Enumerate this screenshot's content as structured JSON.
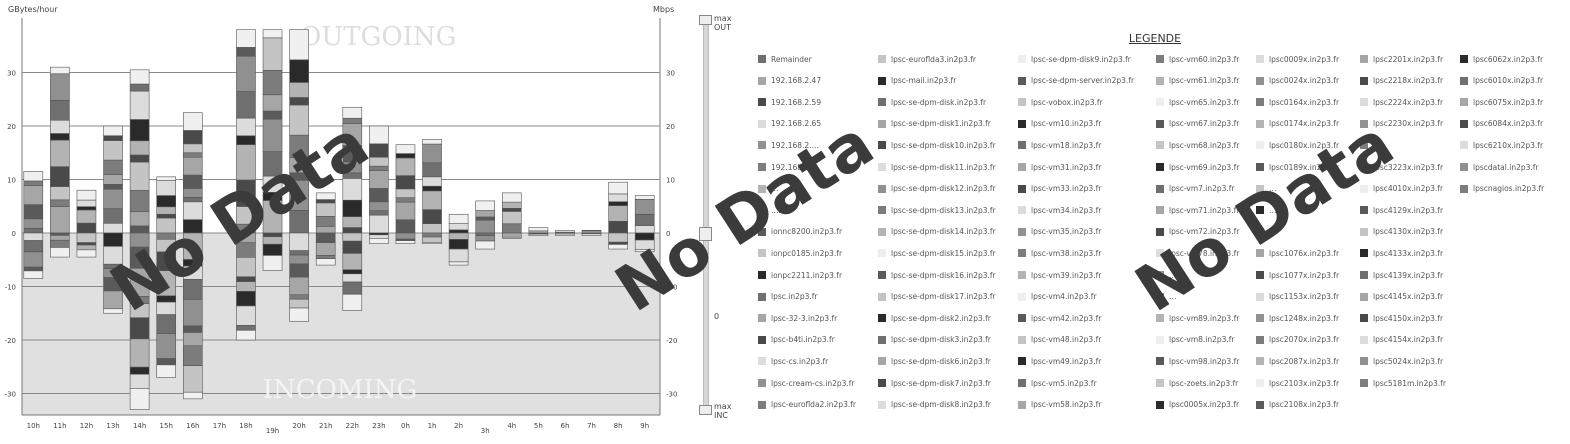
{
  "units": {
    "left": "GBytes/hour",
    "right": "Mbps"
  },
  "watermark_text": "No Data",
  "legend_title": "LEGENDE",
  "slider": {
    "max_out": "max OUT",
    "zero": "0",
    "max_inc": "max INC"
  },
  "chart_data": {
    "type": "bar",
    "stacked": true,
    "title": "",
    "region_labels": [
      "OUTGOING",
      "INCOMING"
    ],
    "categories": [
      "10h",
      "11h",
      "12h",
      "13h",
      "14h",
      "15h",
      "16h",
      "17h",
      "18h",
      "19h",
      "20h",
      "21h",
      "22h",
      "23h",
      "0h",
      "1h",
      "2h",
      "3h",
      "4h",
      "5h",
      "6h",
      "7h",
      "8h",
      "9h"
    ],
    "ylim": [
      -33,
      38
    ],
    "yticks": [
      30,
      20,
      10,
      0,
      -10,
      -20,
      -30
    ],
    "outgoing_totals": [
      11.5,
      31,
      8,
      20,
      30.5,
      10.5,
      22.5,
      0,
      38,
      38,
      38,
      7.5,
      23.5,
      20,
      16.5,
      17.5,
      3.5,
      6,
      7.5,
      1,
      0.5,
      0.5,
      9.5,
      7
    ],
    "incoming_totals": [
      -8.5,
      -4.5,
      -4.5,
      -15,
      -33,
      -27,
      -31,
      0,
      -20,
      -7,
      -16.5,
      -6,
      -14.5,
      -2,
      -2,
      -2,
      -6,
      -3,
      -1,
      -0.5,
      -0.5,
      -0.5,
      -3,
      -3.5
    ],
    "grey_shades": [
      "#6f6f6f",
      "#909090",
      "#5a5a5a",
      "#a6a6a6",
      "#7c7c7c",
      "#c4c4c4",
      "#4a4a4a",
      "#b3b3b3",
      "#2a2a2a",
      "#dcdcdc"
    ],
    "incoming_fill": "#e0e0e0"
  },
  "legend": [
    [
      "Remainder",
      "192.168.2.47",
      "192.168.2.59",
      "192.168.2.65",
      "192.168.2.…",
      "192.168.2.…",
      "…",
      "…203",
      "ionnc8200.in2p3.fr",
      "ionpc0185.in2p3.fr",
      "ionpc2211.in2p3.fr",
      "lpsc.in2p3.fr",
      "lpsc-32-3.in2p3.fr",
      "lpsc-b4ti.in2p3.fr",
      "lpsc-cs.in2p3.fr",
      "lpsc-cream-cs.in2p3.fr",
      "lpsc-euroflda2.in2p3.fr"
    ],
    [
      "lpsc-euroflda3.in2p3.fr",
      "lpsc-mail.in2p3.fr",
      "lpsc-se-dpm-disk.in2p3.fr",
      "lpsc-se-dpm-disk1.in2p3.fr",
      "lpsc-se-dpm-disk10.in2p3.fr",
      "lpsc-se-dpm-disk11.in2p3.fr",
      "lpsc-se-dpm-disk12.in2p3.fr",
      "lpsc-se-dpm-disk13.in2p3.fr",
      "lpsc-se-dpm-disk14.in2p3.fr",
      "lpsc-se-dpm-disk15.in2p3.fr",
      "lpsc-se-dpm-disk16.in2p3.fr",
      "lpsc-se-dpm-disk17.in2p3.fr",
      "lpsc-se-dpm-disk2.in2p3.fr",
      "lpsc-se-dpm-disk3.in2p3.fr",
      "lpsc-se-dpm-disk6.in2p3.fr",
      "lpsc-se-dpm-disk7.in2p3.fr",
      "lpsc-se-dpm-disk8.in2p3.fr"
    ],
    [
      "lpsc-se-dpm-disk9.in2p3.fr",
      "lpsc-se-dpm-server.in2p3.fr",
      "lpsc-vobox.in2p3.fr",
      "lpsc-vm10.in2p3.fr",
      "lpsc-vm18.in2p3.fr",
      "lpsc-vm31.in2p3.fr",
      "lpsc-vm33.in2p3.fr",
      "lpsc-vm34.in2p3.fr",
      "lpsc-vm35.in2p3.fr",
      "lpsc-vm38.in2p3.fr",
      "lpsc-vm39.in2p3.fr",
      "lpsc-vm4.in2p3.fr",
      "lpsc-vm42.in2p3.fr",
      "lpsc-vm48.in2p3.fr",
      "lpsc-vm49.in2p3.fr",
      "lpsc-vm5.in2p3.fr",
      "lpsc-vm58.in2p3.fr"
    ],
    [
      "lpsc-vm60.in2p3.fr",
      "lpsc-vm61.in2p3.fr",
      "lpsc-vm65.in2p3.fr",
      "lpsc-vm67.in2p3.fr",
      "lpsc-vm68.in2p3.fr",
      "lpsc-vm69.in2p3.fr",
      "lpsc-vm7.in2p3.fr",
      "lpsc-vm71.in2p3.fr",
      "lpsc-vm72.in2p3.fr",
      "lpsc-vm78.in2p3.fr",
      "…",
      "…",
      "lpsc-vm89.in2p3.fr",
      "lpsc-vm8.in2p3.fr",
      "lpsc-vm98.in2p3.fr",
      "lpsc-zoets.in2p3.fr",
      "lpsc0005x.in2p3.fr"
    ],
    [
      "lpsc0009x.in2p3.fr",
      "lpsc0024x.in2p3.fr",
      "lpsc0164x.in2p3.fr",
      "lpsc0174x.in2p3.fr",
      "lpsc0180x.in2p3.fr",
      "lpsc0189x.in2p3.fr",
      "…",
      "…",
      "…",
      "lpsc1076x.in2p3.fr",
      "lpsc1077x.in2p3.fr",
      "lpsc1153x.in2p3.fr",
      "lpsc1248x.in2p3.fr",
      "lpsc2070x.in2p3.fr",
      "lpsc2087x.in2p3.fr",
      "lpsc2103x.in2p3.fr",
      "lpsc2108x.in2p3.fr"
    ],
    [
      "lpsc2201x.in2p3.fr",
      "lpsc2218x.in2p3.fr",
      "lpsc2224x.in2p3.fr",
      "lpsc2230x.in2p3.fr",
      "…",
      "lpsc3223x.in2p3.fr",
      "lpsc4010x.in2p3.fr",
      "lpsc4129x.in2p3.fr",
      "lpsc4130x.in2p3.fr",
      "lpsc4133x.in2p3.fr",
      "lpsc4139x.in2p3.fr",
      "lpsc4145x.in2p3.fr",
      "lpsc4150x.in2p3.fr",
      "lpsc4154x.in2p3.fr",
      "lpsc5024x.in2p3.fr",
      "lpsc5181m.in2p3.fr"
    ],
    [
      "lpsc6062x.in2p3.fr",
      "lpsc6010x.in2p3.fr",
      "lpsc6075x.in2p3.fr",
      "lpsc6084x.in2p3.fr",
      "lpsc6210x.in2p3.fr",
      "lpscdatal.in2p3.fr",
      "lpscnagios.in2p3.fr"
    ]
  ]
}
